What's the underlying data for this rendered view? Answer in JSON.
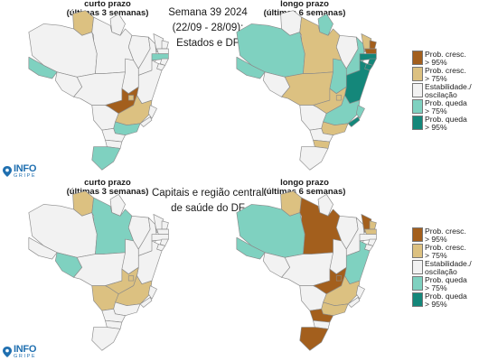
{
  "top": {
    "left_header": [
      "curto prazo",
      "(últimas 3 semanas)"
    ],
    "right_header": [
      "longo prazo",
      "(últimas 6 semanas)"
    ],
    "center_title": [
      "Semana 39 2024",
      "(22/09 - 28/09):",
      "Estados e DF"
    ]
  },
  "bottom": {
    "left_header": [
      "curto prazo",
      "(últimas 3 semanas)"
    ],
    "right_header": [
      "longo prazo",
      "(últimas 6 semanas)"
    ],
    "center_title": [
      "Capitais e região central",
      "de saúde do DF"
    ]
  },
  "legend": {
    "items": [
      {
        "label": [
          "Prob. cresc.",
          "> 95%"
        ],
        "color": "#a35f1d"
      },
      {
        "label": [
          "Prob. cresc.",
          "> 75%"
        ],
        "color": "#dcc181"
      },
      {
        "label": [
          "Estabilidade./",
          "oscilação"
        ],
        "color": "#f2f2f2"
      },
      {
        "label": [
          "Prob. queda",
          "> 75%"
        ],
        "color": "#7fd1c0"
      },
      {
        "label": [
          "Prob. queda",
          "> 95%"
        ],
        "color": "#14877a"
      }
    ]
  },
  "logo": {
    "word": "INFO",
    "sub": "GRIPE"
  },
  "palette": {
    "up95": "#a35f1d",
    "up75": "#dcc181",
    "stable": "#f2f2f2",
    "down75": "#7fd1c0",
    "down95": "#14877a"
  },
  "maps": {
    "top_short": {
      "AC": "down75",
      "AM": "stable",
      "RR": "up75",
      "AP": "stable",
      "PA": "stable",
      "RO": "stable",
      "MT": "stable",
      "TO": "stable",
      "MA": "stable",
      "PI": "stable",
      "CE": "stable",
      "RN": "stable",
      "PB": "stable",
      "PE": "down75",
      "AL": "stable",
      "SE": "stable",
      "BA": "stable",
      "GO": "up95",
      "DF": "up75",
      "MS": "stable",
      "MG": "up75",
      "ES": "stable",
      "RJ": "stable",
      "SP": "down75",
      "PR": "stable",
      "SC": "stable",
      "RS": "down75"
    },
    "top_long": {
      "AC": "down75",
      "AM": "down75",
      "RR": "stable",
      "AP": "down75",
      "PA": "up75",
      "RO": "stable",
      "MT": "up75",
      "TO": "down75",
      "MA": "stable",
      "PI": "down75",
      "CE": "up75",
      "RN": "up95",
      "PB": "up95",
      "PE": "down95",
      "AL": "down95",
      "SE": "down95",
      "BA": "down95",
      "GO": "up75",
      "DF": "up75",
      "MS": "stable",
      "MG": "down75",
      "ES": "down75",
      "RJ": "down95",
      "SP": "up75",
      "PR": "stable",
      "SC": "up75",
      "RS": "stable"
    },
    "bot_short": {
      "AC": "stable",
      "AM": "stable",
      "RR": "up75",
      "AP": "stable",
      "PA": "down75",
      "RO": "down75",
      "MT": "stable",
      "TO": "stable",
      "MA": "stable",
      "PI": "stable",
      "CE": "stable",
      "RN": "stable",
      "PB": "stable",
      "PE": "stable",
      "AL": "stable",
      "SE": "stable",
      "BA": "stable",
      "GO": "up75",
      "DF": "up75",
      "MS": "up75",
      "MG": "up75",
      "ES": "stable",
      "RJ": "stable",
      "SP": "stable",
      "PR": "stable",
      "SC": "stable",
      "RS": "stable"
    },
    "bot_long": {
      "AC": "down75",
      "AM": "down75",
      "RR": "up75",
      "AP": "stable",
      "PA": "up95",
      "RO": "stable",
      "MT": "stable",
      "TO": "stable",
      "MA": "stable",
      "PI": "stable",
      "CE": "up95",
      "RN": "up75",
      "PB": "up75",
      "PE": "stable",
      "AL": "stable",
      "SE": "stable",
      "BA": "down75",
      "GO": "up95",
      "DF": "up95",
      "MS": "stable",
      "MG": "up75",
      "ES": "stable",
      "RJ": "stable",
      "SP": "up75",
      "PR": "up95",
      "SC": "stable",
      "RS": "up95"
    }
  }
}
